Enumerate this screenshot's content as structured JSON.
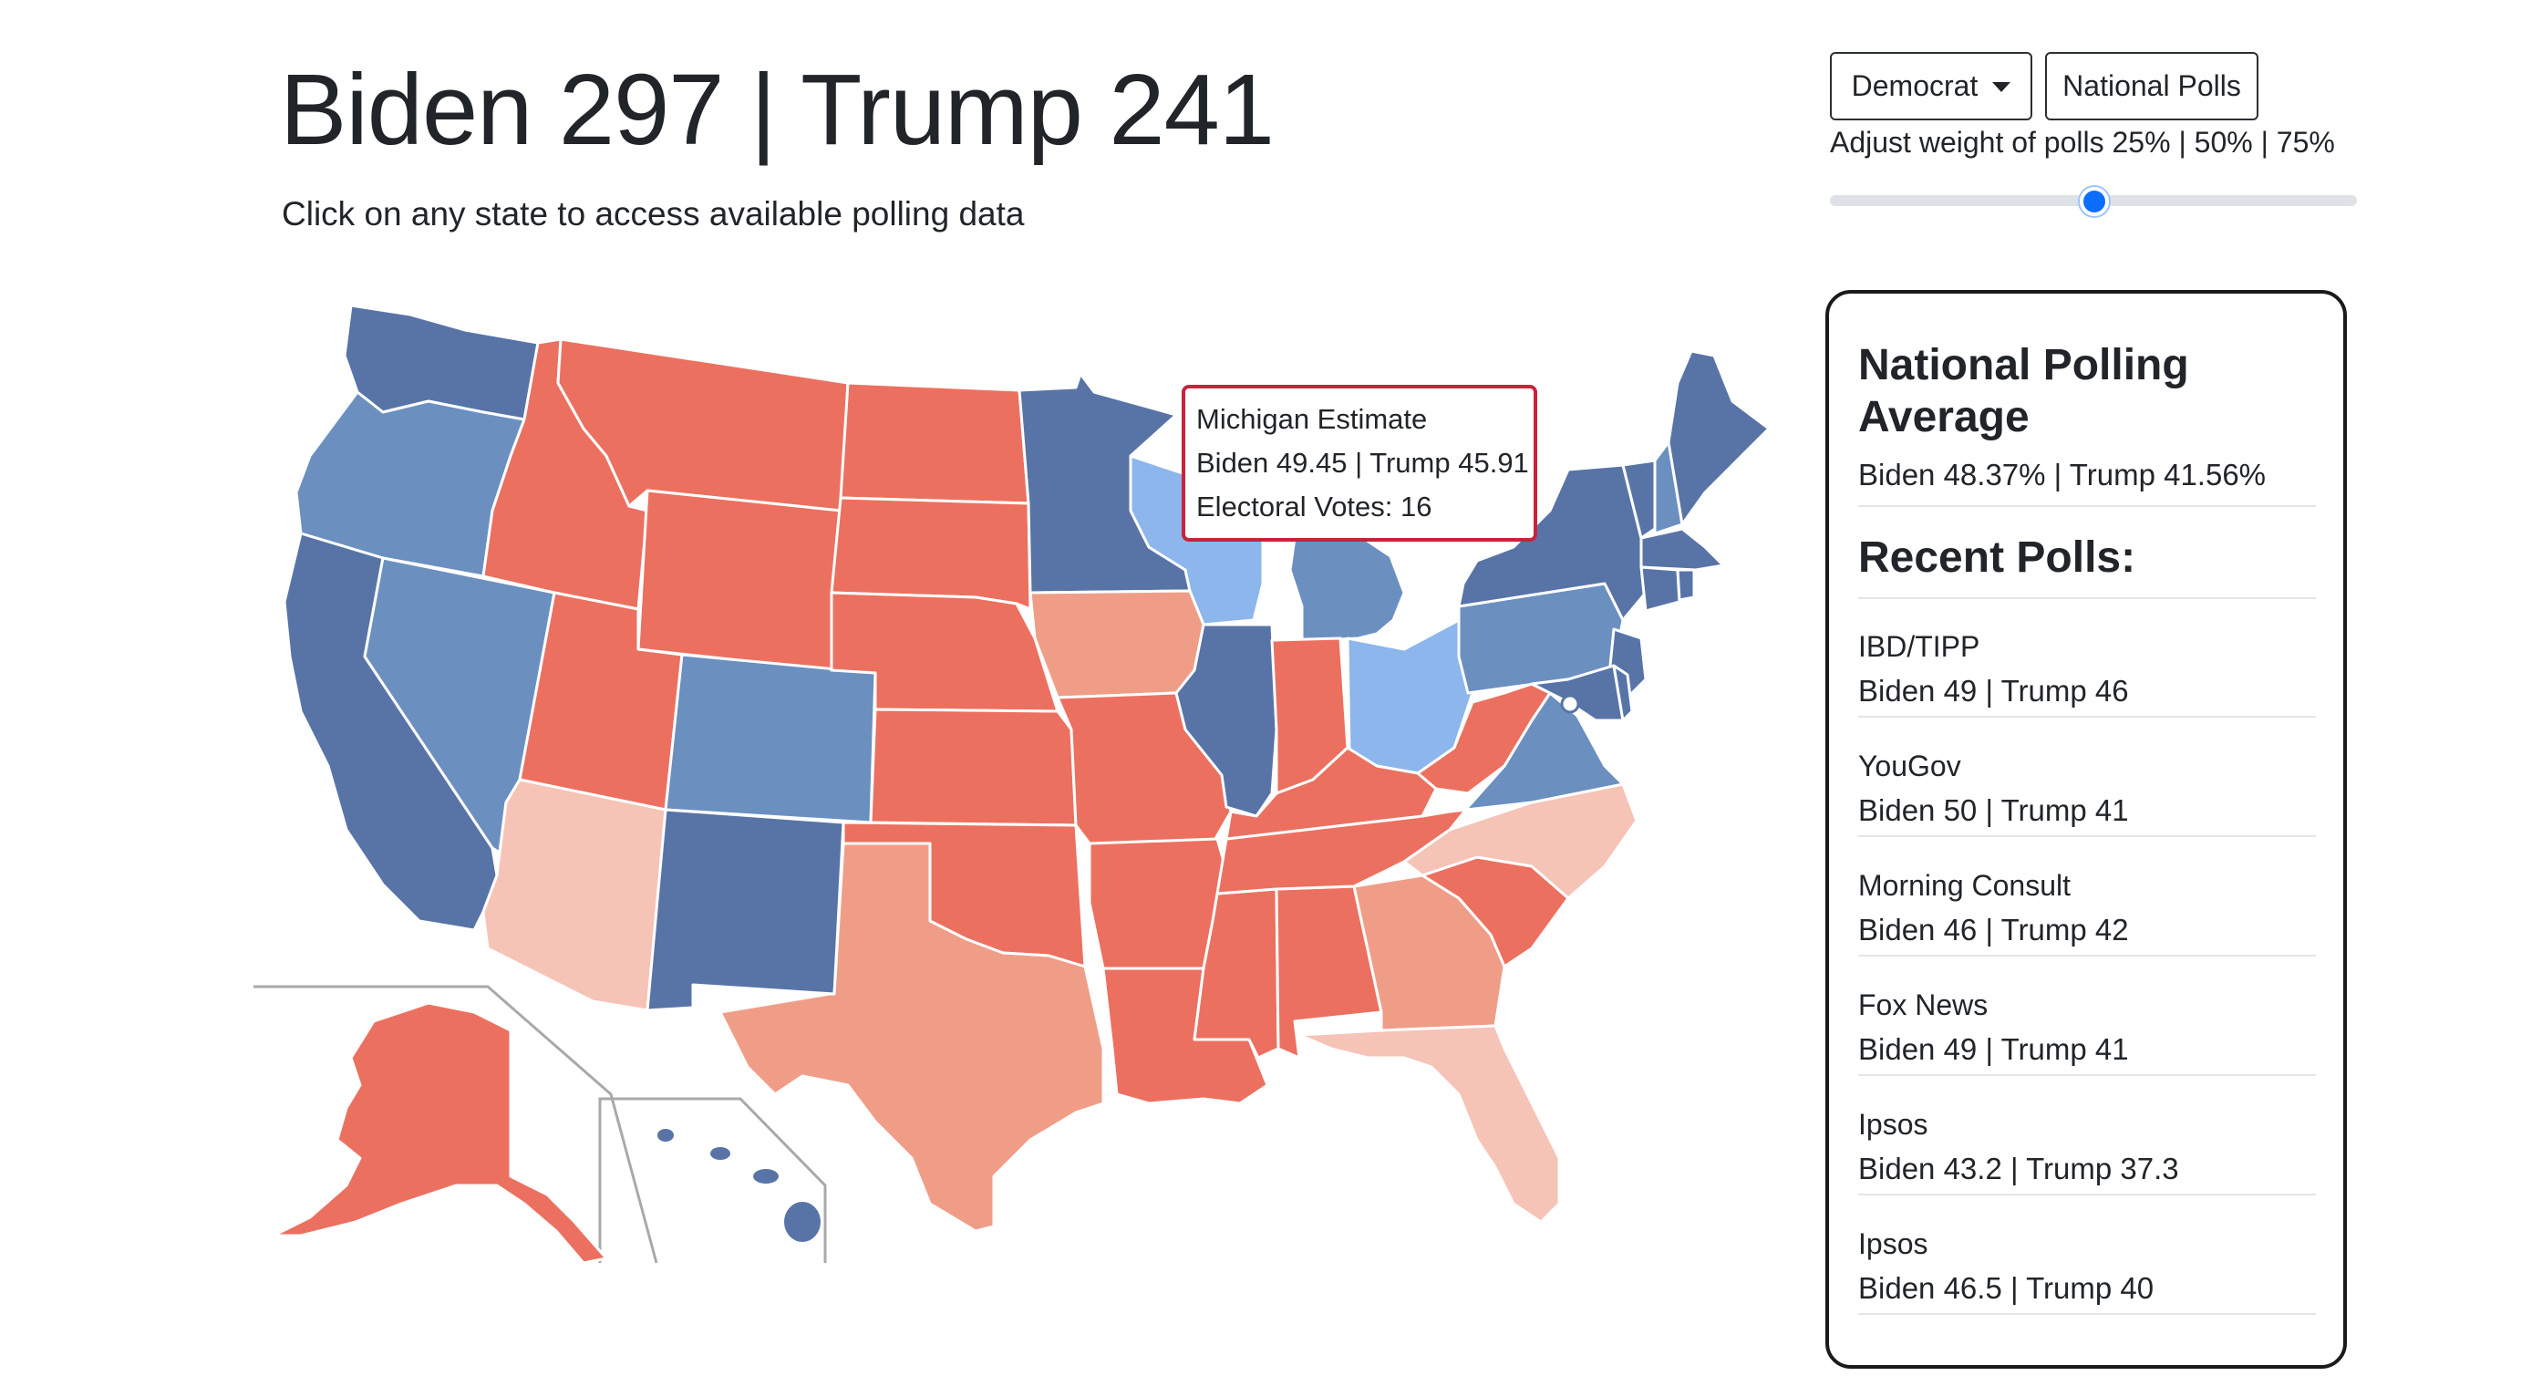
{
  "header": {
    "headline": "Biden 297 | Trump 241",
    "subheadline": "Click on any state to access available polling data"
  },
  "controls": {
    "party_dropdown": "Democrat",
    "national_polls_button": "National Polls",
    "weight_label": "Adjust weight of polls 25% | 50% | 75%",
    "weight_value": "50%"
  },
  "tooltip": {
    "title": "Michigan Estimate",
    "result": "Biden 49.45 | Trump 45.91",
    "electoral_votes": "Electoral Votes: 16"
  },
  "sidebar": {
    "title": "National Polling Average",
    "average": "Biden 48.37% | Trump 41.56%",
    "recent_title": "Recent Polls:",
    "polls": [
      {
        "pollster": "IBD/TIPP",
        "result": "Biden 49 | Trump 46"
      },
      {
        "pollster": "YouGov",
        "result": "Biden 50 | Trump 41"
      },
      {
        "pollster": "Morning Consult",
        "result": "Biden 46 | Trump 42"
      },
      {
        "pollster": "Fox News",
        "result": "Biden 49 | Trump 41"
      },
      {
        "pollster": "Ipsos",
        "result": "Biden 43.2 | Trump 37.3"
      },
      {
        "pollster": "Ipsos",
        "result": "Biden 46.5 | Trump 40"
      }
    ]
  },
  "map_colors": {
    "dem_solid": "#5874a7",
    "dem_likely": "#6b90c0",
    "dem_lean": "#8cb6ec",
    "rep_solid": "#ec7060",
    "rep_likely": "#f09d88",
    "rep_lean": "#f6c3b7",
    "selected_outline": "#000000",
    "tooltip_border": "#c8233a"
  }
}
